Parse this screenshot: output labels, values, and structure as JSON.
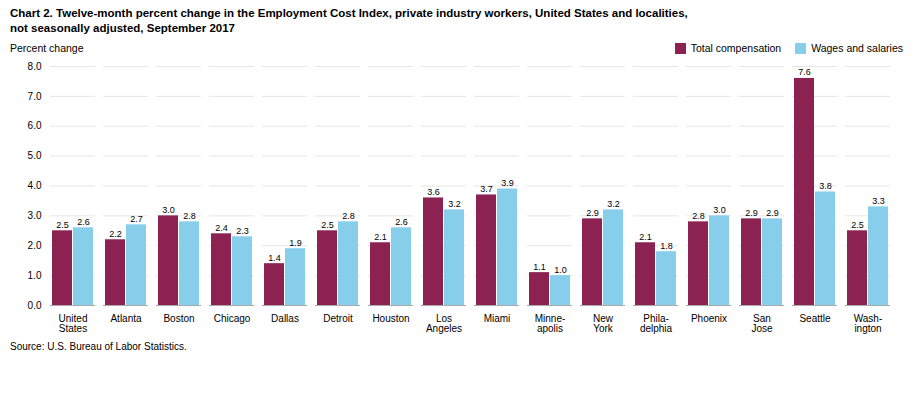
{
  "chart_data": {
    "type": "bar",
    "title": "Chart 2. Twelve-month percent change in the Employment Cost Index, private industry workers, United States and localities,\nnot seasonally adjusted, September 2017",
    "ylabel": "Percent change",
    "caption": "Source: U.S. Bureau of Labor Statistics.",
    "categories": [
      "United\nStates",
      "Atlanta",
      "Boston",
      "Chicago",
      "Dallas",
      "Detroit",
      "Houston",
      "Los\nAngeles",
      "Miami",
      "Minne-\napolis",
      "New\nYork",
      "Phila-\ndelphia",
      "Phoenix",
      "San\nJose",
      "Seattle",
      "Wash-\nington"
    ],
    "series": [
      {
        "name": "Total compensation",
        "color": "#8B2252",
        "values": [
          2.5,
          2.2,
          3.0,
          2.4,
          1.4,
          2.5,
          2.1,
          3.6,
          3.7,
          1.1,
          2.9,
          2.1,
          2.8,
          2.9,
          7.6,
          2.5
        ],
        "value_labels": [
          "2.5",
          "2.2",
          "3.0",
          "2.4",
          "1.4",
          "2.5",
          "2.1",
          "3.6",
          "3.7",
          "1.1",
          "2.9",
          "2.1",
          "2.8",
          "2.9",
          "7.6",
          "2.5"
        ]
      },
      {
        "name": "Wages and salaries",
        "color": "#87CEEB",
        "values": [
          2.6,
          2.7,
          2.8,
          2.3,
          1.9,
          2.8,
          2.6,
          3.2,
          3.9,
          1.0,
          3.2,
          1.8,
          3.0,
          2.9,
          3.8,
          3.3
        ],
        "value_labels": [
          "2.6",
          "2.7",
          "2.8",
          "2.3",
          "1.9",
          "2.8",
          "2.6",
          "3.2",
          "3.9",
          "1.0",
          "3.2",
          "1.8",
          "3.0",
          "2.9",
          "3.8",
          "3.3"
        ]
      }
    ],
    "ylim": [
      0.0,
      8.0
    ],
    "yticks": [
      {
        "value": 0.0,
        "label": "0.0"
      },
      {
        "value": 1.0,
        "label": "1.0"
      },
      {
        "value": 2.0,
        "label": "2.0"
      },
      {
        "value": 3.0,
        "label": "3.0"
      },
      {
        "value": 4.0,
        "label": "4.0"
      },
      {
        "value": 5.0,
        "label": "5.0"
      },
      {
        "value": 6.0,
        "label": "6.0"
      },
      {
        "value": 7.0,
        "label": "7.0"
      },
      {
        "value": 8.0,
        "label": "8.0"
      }
    ],
    "grid": true,
    "legend": "upper right",
    "data_labels": true
  }
}
